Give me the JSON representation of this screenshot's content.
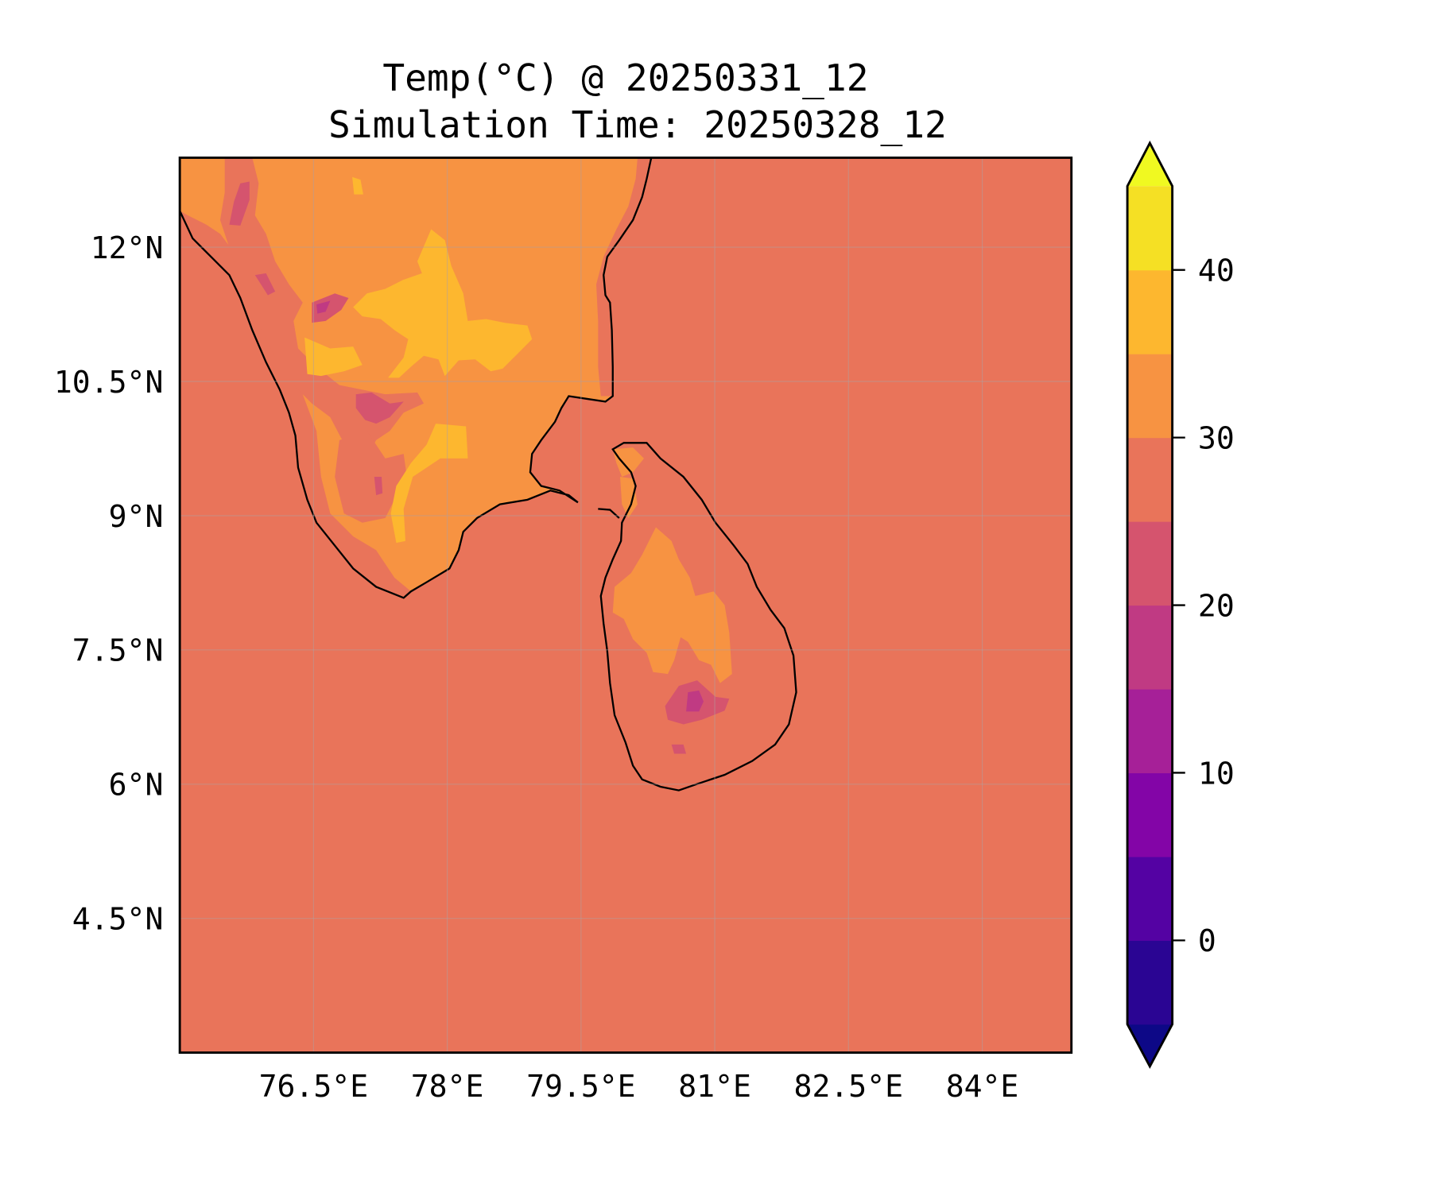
{
  "chart_data": {
    "type": "heatmap",
    "subtype": "filled-contour map",
    "title": "Temp(°C) @ 20250331_12",
    "subtitle": "Simulation Time: 20250328_12",
    "xlabel": "",
    "ylabel": "",
    "xlim": [
      75,
      85
    ],
    "ylim": [
      3,
      13
    ],
    "x_ticks": [
      76.5,
      78,
      79.5,
      81,
      82.5,
      84
    ],
    "x_tick_labels": [
      "76.5°E",
      "78°E",
      "79.5°E",
      "81°E",
      "82.5°E",
      "84°E"
    ],
    "y_ticks": [
      4.5,
      6,
      7.5,
      9,
      10.5,
      12
    ],
    "y_tick_labels": [
      "4.5°N",
      "6°N",
      "7.5°N",
      "9°N",
      "10.5°N",
      "12°N"
    ],
    "grid": true,
    "colorbar": {
      "levels": [
        -5,
        0,
        5,
        10,
        15,
        20,
        25,
        30,
        35,
        40,
        45
      ],
      "extend": "both",
      "ticks": [
        0,
        10,
        20,
        30,
        40
      ],
      "tick_labels": [
        "0",
        "10",
        "20",
        "30",
        "40"
      ],
      "colors": [
        "#2a0593",
        "#5402a3",
        "#8305a7",
        "#a62098",
        "#c03a83",
        "#d5546e",
        "#e9745a",
        "#f79342",
        "#fdb72f",
        "#f5e024"
      ],
      "under_color": "#0d0887",
      "over_color": "#f0f921",
      "placement": "right"
    },
    "field_summary": {
      "ocean_bin": [
        25,
        30
      ],
      "india_interior_bins": [
        [
          30,
          35
        ],
        [
          35,
          40
        ]
      ],
      "ghats_bins": [
        [
          15,
          20
        ],
        [
          20,
          25
        ]
      ],
      "sri_lanka_bins": [
        [
          25,
          30
        ],
        [
          30,
          35
        ],
        [
          15,
          20
        ]
      ]
    }
  }
}
